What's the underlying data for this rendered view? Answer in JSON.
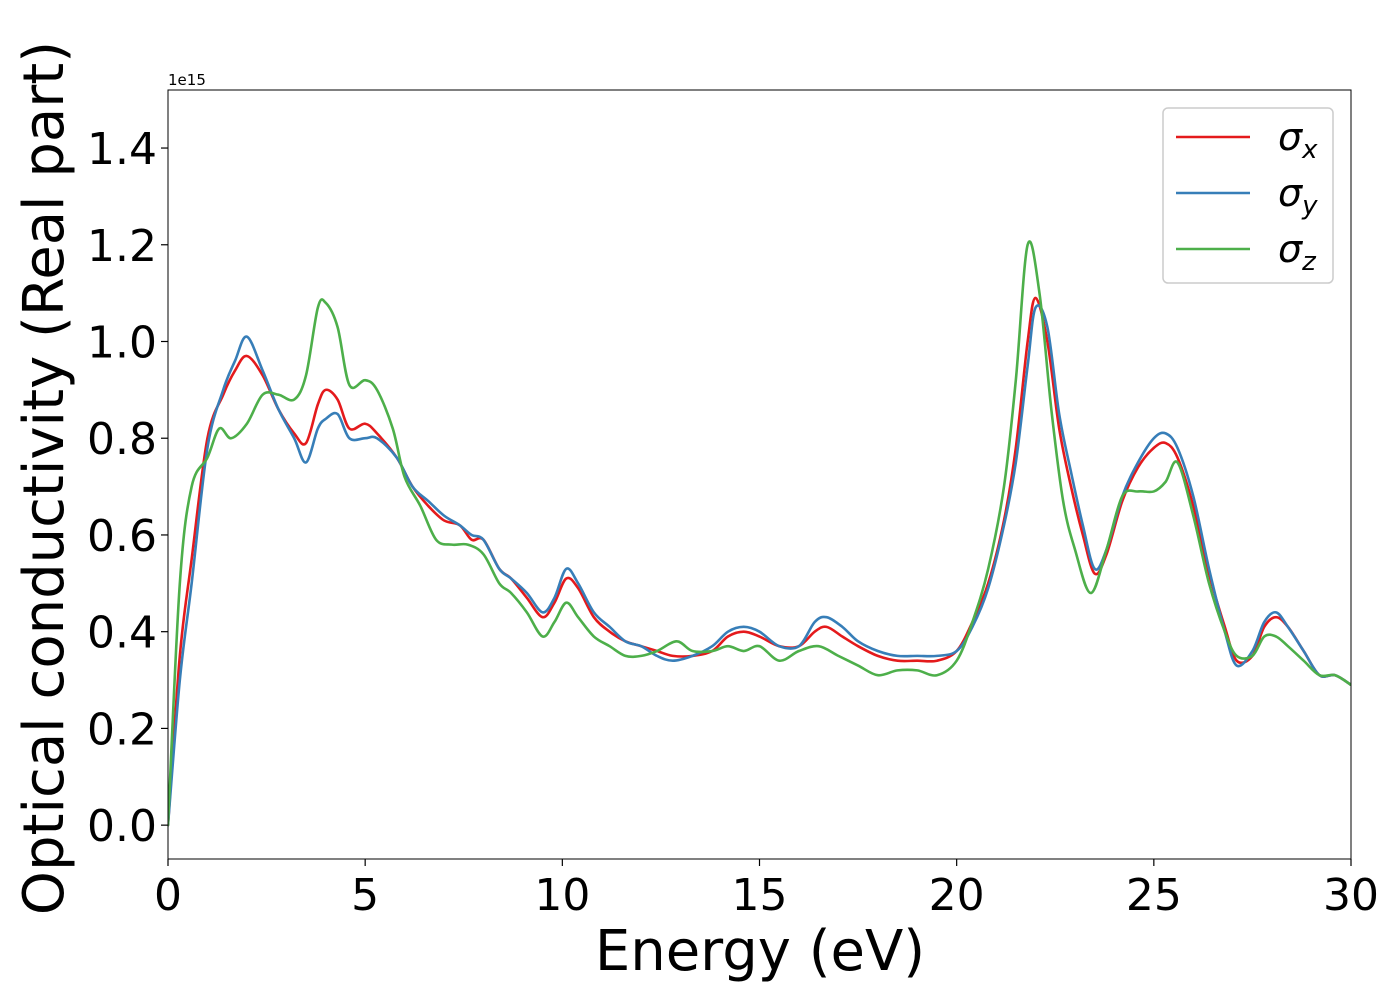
{
  "chart_data": {
    "type": "line",
    "xlabel": "Energy (eV)",
    "ylabel": "Optical conductivity (Real part)",
    "y_offset_label": "1e15",
    "xlim": [
      0,
      30
    ],
    "ylim": [
      -0.07,
      1.52
    ],
    "xticks": [
      0,
      5,
      10,
      15,
      20,
      25,
      30
    ],
    "xtick_labels": [
      "0",
      "5",
      "10",
      "15",
      "20",
      "25",
      "30"
    ],
    "yticks": [
      0.0,
      0.2,
      0.4,
      0.6,
      0.8,
      1.0,
      1.2,
      1.4
    ],
    "ytick_labels": [
      "0.0",
      "0.2",
      "0.4",
      "0.6",
      "0.8",
      "1.0",
      "1.2",
      "1.4"
    ],
    "grid": false,
    "legend_position": "top-right",
    "series": [
      {
        "name": "σ",
        "subscript": "x",
        "color": "#e41a1c",
        "x": [
          0,
          0.3,
          0.6,
          1.0,
          1.4,
          1.7,
          2.0,
          2.4,
          2.8,
          3.2,
          3.5,
          3.8,
          4.0,
          4.3,
          4.6,
          5.0,
          5.3,
          5.8,
          6.2,
          6.6,
          7.0,
          7.4,
          7.7,
          8.0,
          8.4,
          8.7,
          9.1,
          9.5,
          9.8,
          10.1,
          10.4,
          10.8,
          11.2,
          11.6,
          12.0,
          12.4,
          12.8,
          13.3,
          13.8,
          14.2,
          14.6,
          15.0,
          15.5,
          16.0,
          16.4,
          16.7,
          17.1,
          17.5,
          18.0,
          18.5,
          19.0,
          19.5,
          20.0,
          20.4,
          20.8,
          21.2,
          21.5,
          21.8,
          22.0,
          22.3,
          22.6,
          22.9,
          23.2,
          23.5,
          23.8,
          24.2,
          24.6,
          25.0,
          25.3,
          25.6,
          26.0,
          26.4,
          26.8,
          27.1,
          27.5,
          27.8,
          28.1,
          28.4,
          28.8,
          29.2,
          29.6,
          30.0
        ],
        "values": [
          0.0,
          0.35,
          0.55,
          0.8,
          0.89,
          0.94,
          0.97,
          0.93,
          0.86,
          0.81,
          0.79,
          0.87,
          0.9,
          0.88,
          0.82,
          0.83,
          0.81,
          0.76,
          0.7,
          0.66,
          0.63,
          0.62,
          0.59,
          0.59,
          0.53,
          0.51,
          0.47,
          0.43,
          0.46,
          0.51,
          0.49,
          0.43,
          0.4,
          0.38,
          0.37,
          0.36,
          0.35,
          0.35,
          0.36,
          0.39,
          0.4,
          0.39,
          0.37,
          0.37,
          0.4,
          0.41,
          0.39,
          0.37,
          0.35,
          0.34,
          0.34,
          0.34,
          0.36,
          0.42,
          0.5,
          0.63,
          0.78,
          1.0,
          1.09,
          1.0,
          0.82,
          0.7,
          0.6,
          0.52,
          0.56,
          0.67,
          0.74,
          0.78,
          0.79,
          0.76,
          0.66,
          0.52,
          0.41,
          0.34,
          0.35,
          0.41,
          0.43,
          0.41,
          0.36,
          0.31,
          0.31,
          0.29
        ]
      },
      {
        "name": "σ",
        "subscript": "y",
        "color": "#377eb8",
        "x": [
          0,
          0.3,
          0.6,
          1.0,
          1.4,
          1.7,
          2.0,
          2.4,
          2.8,
          3.2,
          3.5,
          3.8,
          4.0,
          4.3,
          4.6,
          5.0,
          5.3,
          5.8,
          6.2,
          6.6,
          7.0,
          7.4,
          7.7,
          8.0,
          8.4,
          8.7,
          9.1,
          9.5,
          9.8,
          10.1,
          10.4,
          10.8,
          11.2,
          11.6,
          12.0,
          12.4,
          12.8,
          13.3,
          13.8,
          14.2,
          14.6,
          15.0,
          15.5,
          16.0,
          16.4,
          16.7,
          17.1,
          17.5,
          18.0,
          18.5,
          19.0,
          19.5,
          20.0,
          20.4,
          20.8,
          21.2,
          21.5,
          21.8,
          22.0,
          22.3,
          22.6,
          22.9,
          23.2,
          23.5,
          23.8,
          24.2,
          24.6,
          25.0,
          25.3,
          25.6,
          26.0,
          26.4,
          26.8,
          27.1,
          27.5,
          27.8,
          28.1,
          28.4,
          28.8,
          29.2,
          29.6,
          30.0
        ],
        "values": [
          0.0,
          0.3,
          0.5,
          0.78,
          0.9,
          0.96,
          1.01,
          0.94,
          0.86,
          0.8,
          0.75,
          0.82,
          0.84,
          0.85,
          0.8,
          0.8,
          0.8,
          0.76,
          0.7,
          0.67,
          0.64,
          0.62,
          0.6,
          0.59,
          0.53,
          0.51,
          0.48,
          0.44,
          0.47,
          0.53,
          0.5,
          0.44,
          0.41,
          0.38,
          0.37,
          0.35,
          0.34,
          0.35,
          0.37,
          0.4,
          0.41,
          0.4,
          0.37,
          0.37,
          0.42,
          0.43,
          0.41,
          0.38,
          0.36,
          0.35,
          0.35,
          0.35,
          0.36,
          0.41,
          0.49,
          0.62,
          0.75,
          0.95,
          1.07,
          1.03,
          0.85,
          0.73,
          0.62,
          0.53,
          0.57,
          0.68,
          0.75,
          0.8,
          0.81,
          0.78,
          0.68,
          0.53,
          0.4,
          0.33,
          0.36,
          0.42,
          0.44,
          0.41,
          0.36,
          0.31,
          0.31,
          0.29
        ]
      },
      {
        "name": "σ",
        "subscript": "z",
        "color": "#4daf4a",
        "x": [
          0,
          0.3,
          0.6,
          1.0,
          1.3,
          1.6,
          2.0,
          2.4,
          2.8,
          3.2,
          3.5,
          3.8,
          4.0,
          4.3,
          4.6,
          5.0,
          5.3,
          5.7,
          6.0,
          6.4,
          6.8,
          7.2,
          7.6,
          8.0,
          8.4,
          8.7,
          9.1,
          9.5,
          9.8,
          10.1,
          10.4,
          10.8,
          11.2,
          11.6,
          12.0,
          12.4,
          12.9,
          13.3,
          13.8,
          14.2,
          14.6,
          15.0,
          15.5,
          16.0,
          16.5,
          17.0,
          17.5,
          18.0,
          18.5,
          19.0,
          19.5,
          20.0,
          20.4,
          20.8,
          21.2,
          21.5,
          21.8,
          22.1,
          22.4,
          22.7,
          23.0,
          23.4,
          23.8,
          24.2,
          24.6,
          25.0,
          25.3,
          25.6,
          26.0,
          26.4,
          26.8,
          27.1,
          27.5,
          27.8,
          28.1,
          28.4,
          28.8,
          29.2,
          29.6,
          30.0
        ],
        "values": [
          0.0,
          0.5,
          0.7,
          0.76,
          0.82,
          0.8,
          0.83,
          0.89,
          0.89,
          0.88,
          0.93,
          1.07,
          1.08,
          1.03,
          0.91,
          0.92,
          0.9,
          0.82,
          0.72,
          0.66,
          0.59,
          0.58,
          0.58,
          0.56,
          0.5,
          0.48,
          0.44,
          0.39,
          0.42,
          0.46,
          0.43,
          0.39,
          0.37,
          0.35,
          0.35,
          0.36,
          0.38,
          0.36,
          0.36,
          0.37,
          0.36,
          0.37,
          0.34,
          0.36,
          0.37,
          0.35,
          0.33,
          0.31,
          0.32,
          0.32,
          0.31,
          0.34,
          0.42,
          0.53,
          0.7,
          0.92,
          1.2,
          1.1,
          0.86,
          0.67,
          0.57,
          0.48,
          0.57,
          0.68,
          0.69,
          0.69,
          0.71,
          0.75,
          0.64,
          0.5,
          0.4,
          0.35,
          0.35,
          0.39,
          0.39,
          0.37,
          0.34,
          0.31,
          0.31,
          0.29
        ]
      }
    ]
  }
}
